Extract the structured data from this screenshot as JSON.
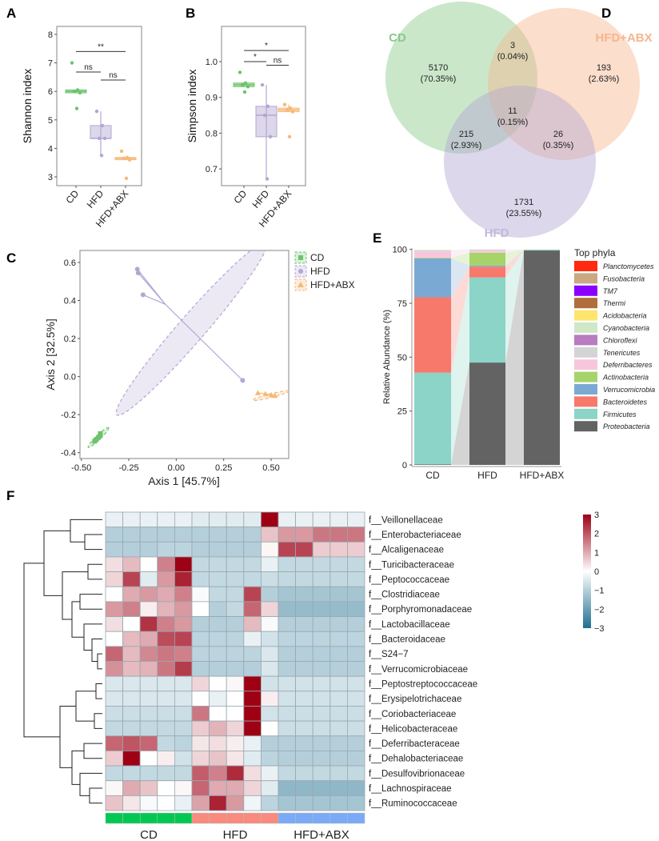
{
  "figure": {
    "panel_labels": [
      "A",
      "B",
      "C",
      "D",
      "E",
      "F"
    ]
  },
  "chart_data": [
    {
      "panel": "A",
      "type": "box",
      "ylabel": "Shannon index",
      "categories": [
        "CD",
        "HFD",
        "HFD+ABX"
      ],
      "ylim": [
        2.7,
        8.3
      ],
      "yticks": [
        "3",
        "4",
        "5",
        "6",
        "7",
        "8"
      ],
      "colors": [
        "#6cc46c",
        "#b3a6d3",
        "#f5b978"
      ],
      "values": [
        [
          7.0,
          6.05,
          6.0,
          5.95,
          5.4
        ],
        [
          5.3,
          4.8,
          4.35,
          4.35,
          3.75
        ],
        [
          3.9,
          3.68,
          3.65,
          3.6,
          2.95
        ]
      ],
      "significance": [
        {
          "from": 0,
          "to": 1,
          "y": 6.68,
          "label": "ns"
        },
        {
          "from": 1,
          "to": 2,
          "y": 6.4,
          "label": "ns"
        },
        {
          "from": 0,
          "to": 2,
          "y": 7.4,
          "label": "**"
        }
      ]
    },
    {
      "panel": "B",
      "type": "box",
      "ylabel": "Simpson index",
      "categories": [
        "CD",
        "HFD",
        "HFD+ABX"
      ],
      "ylim": [
        0.655,
        1.1
      ],
      "yticks": [
        "0.7",
        "0.8",
        "0.9",
        "1.0"
      ],
      "colors": [
        "#6cc46c",
        "#b3a6d3",
        "#f5b978"
      ],
      "values": [
        [
          0.97,
          0.94,
          0.935,
          0.93,
          0.915
        ],
        [
          0.935,
          0.875,
          0.85,
          0.79,
          0.672
        ],
        [
          0.88,
          0.87,
          0.865,
          0.86,
          0.79
        ]
      ],
      "significance": [
        {
          "from": 0,
          "to": 1,
          "y": 1.0,
          "label": "*"
        },
        {
          "from": 1,
          "to": 2,
          "y": 0.99,
          "label": "ns"
        },
        {
          "from": 0,
          "to": 2,
          "y": 1.031,
          "label": "*"
        }
      ]
    },
    {
      "panel": "C",
      "type": "scatter",
      "xlabel": "Axis 1 [45.7%]",
      "ylabel": "Axis 2 [32.5%]",
      "xlim": [
        -0.5,
        0.6
      ],
      "ylim": [
        -0.42,
        0.66
      ],
      "xticks": [
        "-0.50",
        "-0.25",
        "0.00",
        "0.25",
        "0.50"
      ],
      "yticks": [
        "-0.4",
        "-0.2",
        "0.0",
        "0.2",
        "0.4",
        "0.6"
      ],
      "legend": "right",
      "series": [
        {
          "name": "CD",
          "color": "#6cc46c",
          "shape": "square",
          "points": [
            [
              -0.43,
              -0.34
            ],
            [
              -0.42,
              -0.33
            ],
            [
              -0.41,
              -0.32
            ],
            [
              -0.4,
              -0.3
            ],
            [
              -0.4,
              -0.31
            ]
          ]
        },
        {
          "name": "HFD",
          "color": "#b3a6d3",
          "shape": "circle",
          "points": [
            [
              -0.205,
              0.565
            ],
            [
              -0.2,
              0.545
            ],
            [
              -0.175,
              0.43
            ],
            [
              0.35,
              -0.02
            ]
          ]
        },
        {
          "name": "HFD+ABX",
          "color": "#f5b978",
          "shape": "triangle",
          "points": [
            [
              0.43,
              -0.085
            ],
            [
              0.47,
              -0.09
            ],
            [
              0.5,
              -0.095
            ],
            [
              0.52,
              -0.1
            ]
          ]
        }
      ]
    },
    {
      "panel": "D",
      "type": "venn",
      "sets": [
        {
          "name": "CD",
          "color": "#8cc98a"
        },
        {
          "name": "HFD+ABX",
          "color": "#f6b58f"
        },
        {
          "name": "HFD",
          "color": "#b3a6d3"
        }
      ],
      "regions": [
        {
          "sets": [
            "CD"
          ],
          "count": "5170",
          "percent": "(70.35%)"
        },
        {
          "sets": [
            "CD",
            "HFD+ABX"
          ],
          "count": "3",
          "percent": "(0.04%)"
        },
        {
          "sets": [
            "HFD+ABX"
          ],
          "count": "193",
          "percent": "(2.63%)"
        },
        {
          "sets": [
            "CD",
            "HFD+ABX",
            "HFD"
          ],
          "count": "11",
          "percent": "(0.15%)"
        },
        {
          "sets": [
            "CD",
            "HFD"
          ],
          "count": "215",
          "percent": "(2.93%)"
        },
        {
          "sets": [
            "HFD+ABX",
            "HFD"
          ],
          "count": "26",
          "percent": "(0.35%)"
        },
        {
          "sets": [
            "HFD"
          ],
          "count": "1731",
          "percent": "(23.55%)"
        }
      ]
    },
    {
      "panel": "E",
      "type": "bar",
      "stacked": true,
      "ylabel": "Relative Abundance (%)",
      "ylim": [
        0,
        100
      ],
      "yticks": [
        "0",
        "25",
        "50",
        "75",
        "100"
      ],
      "categories": [
        "CD",
        "HFD",
        "HFD+ABX"
      ],
      "legend_title": "Top phyla",
      "series": [
        {
          "name": "Planctomycetes",
          "color": "#ff2a10",
          "values": [
            0,
            0,
            0
          ]
        },
        {
          "name": "Fusobacteria",
          "color": "#c9a882",
          "values": [
            0,
            0,
            0
          ]
        },
        {
          "name": "TM7",
          "color": "#8a00ff",
          "values": [
            0,
            0,
            0
          ]
        },
        {
          "name": "Thermi",
          "color": "#b06e3a",
          "values": [
            0,
            0,
            0
          ]
        },
        {
          "name": "Acidobacteria",
          "color": "#ffe46e",
          "values": [
            0,
            0,
            0
          ]
        },
        {
          "name": "Cyanobacteria",
          "color": "#cfe8c6",
          "values": [
            0.2,
            0,
            0
          ]
        },
        {
          "name": "Chloroflexi",
          "color": "#b87cc0",
          "values": [
            0,
            0,
            0
          ]
        },
        {
          "name": "Tenericutes",
          "color": "#d4d4d4",
          "values": [
            0.5,
            0.5,
            0.1
          ]
        },
        {
          "name": "Deferribacteres",
          "color": "#f8c6dc",
          "values": [
            3,
            1,
            0
          ]
        },
        {
          "name": "Actinobacteria",
          "color": "#a6d46a",
          "values": [
            0.3,
            6,
            0.1
          ]
        },
        {
          "name": "Verrucomicrobia",
          "color": "#7aaad3",
          "values": [
            18,
            0.5,
            0
          ]
        },
        {
          "name": "Bacteroidetes",
          "color": "#f7796b",
          "values": [
            35,
            5,
            0
          ]
        },
        {
          "name": "Firmicutes",
          "color": "#8bd4c7",
          "values": [
            42.5,
            39.5,
            0.3
          ]
        },
        {
          "name": "Proteobacteria",
          "color": "#636363",
          "values": [
            0.3,
            47.5,
            99.5
          ]
        }
      ]
    },
    {
      "panel": "F",
      "type": "heatmap",
      "rows": [
        "f__Veillonellaceae",
        "f__Enterobacteriaceae",
        "f__Alcaligenaceae",
        "f__Turicibacteraceae",
        "f__Peptococcaceae",
        "f__Clostridiaceae",
        "f__Porphyromonadaceae",
        "f__Lactobacillaceae",
        "f__Bacteroidaceae",
        "f__S24−7",
        "f__Verrucomicrobiaceae",
        "f__Peptostreptococcaceae",
        "f__Erysipelotrichaceae",
        "f__Coriobacteriaceae",
        "f__Helicobacteraceae",
        "f__Deferribacteraceae",
        "f__Dehalobacteriaceae",
        "f__Desulfovibrionaceae",
        "f__Lachnospiraceae",
        "f__Ruminococcaceae"
      ],
      "groups": [
        {
          "name": "CD",
          "color": "#00c853",
          "columns": 5
        },
        {
          "name": "HFD",
          "color": "#f88a7e",
          "columns": 5
        },
        {
          "name": "HFD+ABX",
          "color": "#7aaaf6",
          "columns": 5
        }
      ],
      "color_scale": {
        "min": -3,
        "max": 3,
        "low": "#1f6f91",
        "mid": "#ffffff",
        "high": "#9e0014",
        "ticks": [
          "3",
          "2",
          "1",
          "0",
          "−1",
          "−2",
          "−3"
        ]
      },
      "values": [
        [
          -0.3,
          -0.3,
          -0.3,
          -0.3,
          -0.3,
          -0.4,
          -0.4,
          -0.4,
          -0.4,
          3,
          -0.3,
          -0.3,
          -0.3,
          -0.3,
          -0.3
        ],
        [
          -1,
          -1,
          -1,
          -1,
          -1,
          -1,
          -1,
          -1,
          -1,
          0.7,
          1.2,
          1.2,
          1.6,
          1.6,
          1.6
        ],
        [
          -1,
          -1,
          -1,
          -0.9,
          -0.9,
          -1,
          -1,
          -1,
          -1,
          0.1,
          2.2,
          2.2,
          0.6,
          0.6,
          0.6
        ],
        [
          0.4,
          0.8,
          0,
          1.5,
          3,
          -0.8,
          -0.8,
          -0.8,
          -0.8,
          -0.3,
          -0.8,
          -0.8,
          -0.8,
          -0.8,
          -0.8
        ],
        [
          0.5,
          2.2,
          -0.4,
          1.2,
          2.6,
          -0.8,
          -0.8,
          -0.8,
          -0.8,
          -0.7,
          -0.8,
          -0.8,
          -0.8,
          -0.8,
          -0.8
        ],
        [
          0,
          1,
          1.2,
          1,
          1.5,
          -0.1,
          -0.8,
          -0.8,
          2.2,
          -1,
          -1.2,
          -1.2,
          -1.2,
          -1.2,
          -1.2
        ],
        [
          1.2,
          1.5,
          0.2,
          0.9,
          1.2,
          0,
          -1,
          -0.8,
          1.8,
          0.5,
          -1.4,
          -1.4,
          -1.4,
          -1.4,
          -1.4
        ],
        [
          0.4,
          0,
          2.4,
          1.5,
          1.2,
          -1,
          -1,
          -1,
          0.8,
          -0.1,
          -1,
          -1,
          -1,
          -1,
          -1
        ],
        [
          0,
          0.8,
          1,
          2.1,
          2.2,
          -0.9,
          -0.9,
          -0.9,
          -0.3,
          -0.6,
          -0.9,
          -0.9,
          -0.9,
          -0.9,
          -0.9
        ],
        [
          1.8,
          0.8,
          1.4,
          1.6,
          1.5,
          -0.9,
          -0.9,
          -0.9,
          -0.9,
          -0.5,
          -1,
          -1,
          -1,
          -1,
          -1
        ],
        [
          1.3,
          0.8,
          0.9,
          1.6,
          2.3,
          -1,
          -1,
          -1,
          -1,
          -0.5,
          -1,
          -1,
          -1,
          -1,
          -1
        ],
        [
          -0.5,
          -0.5,
          -0.5,
          -0.5,
          -0.5,
          0.5,
          0,
          0.1,
          3,
          -0.6,
          -0.6,
          -0.6,
          -0.6,
          -0.6,
          -0.6
        ],
        [
          -0.5,
          -0.5,
          -0.5,
          -0.5,
          -0.5,
          0,
          -0.3,
          0,
          3,
          0.2,
          -0.6,
          -0.6,
          -0.6,
          -0.6,
          -0.6
        ],
        [
          -0.7,
          -0.7,
          -0.7,
          -0.7,
          -0.7,
          1.6,
          0,
          0,
          3,
          -0.6,
          -0.7,
          -0.7,
          -0.7,
          -0.7,
          -0.7
        ],
        [
          -0.8,
          -0.8,
          -0.8,
          -0.8,
          -0.8,
          0.6,
          0.9,
          0.5,
          3,
          0,
          -0.7,
          -0.7,
          -0.7,
          -0.7,
          -0.7
        ],
        [
          1.8,
          2,
          1.8,
          -0.8,
          -0.9,
          0.3,
          0.4,
          0.2,
          -0.3,
          -1,
          -1,
          -1,
          -1,
          -1,
          -1
        ],
        [
          0.6,
          3,
          0,
          0.2,
          -0.6,
          0.5,
          0.7,
          0.3,
          -0.4,
          -0.9,
          -1,
          -1,
          -1,
          -1,
          -1
        ],
        [
          -0.8,
          -0.8,
          -0.8,
          -0.8,
          -0.8,
          1.9,
          1.5,
          2.5,
          0.4,
          -0.3,
          -0.8,
          -0.8,
          -0.8,
          -0.8,
          -0.8
        ],
        [
          0.1,
          1,
          0.7,
          0,
          0.1,
          1.8,
          1,
          1,
          0.5,
          -0.4,
          -1.5,
          -1.5,
          -1.5,
          -1.5,
          -1.5
        ],
        [
          0.7,
          0.3,
          -0.1,
          0,
          -0.3,
          1.1,
          2.6,
          1.2,
          -0.2,
          -0.9,
          -1.2,
          -1.2,
          -1.2,
          -1.2,
          -1.2
        ]
      ]
    }
  ]
}
